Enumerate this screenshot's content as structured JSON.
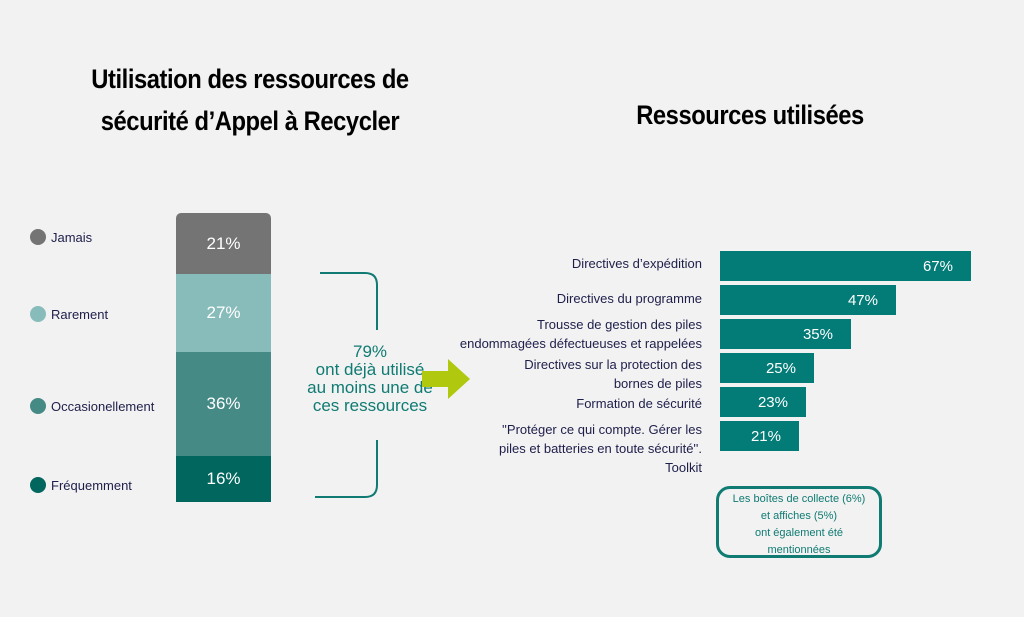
{
  "colors": {
    "jamais": "#747474",
    "rarement": "#88bcbb",
    "occasionnellement": "#468a86",
    "frequemment": "#00665e",
    "bars": "#037b76",
    "arrow": "#b0c80e",
    "accent": "#0f7b72"
  },
  "chart_data": [
    {
      "type": "bar",
      "stacked": true,
      "title": "Utilisation des ressources de sécurité d’Appel à Recycler",
      "series": [
        {
          "name": "Jamais",
          "value": 21,
          "label": "21%"
        },
        {
          "name": "Rarement",
          "value": 27,
          "label": "27%"
        },
        {
          "name": "Occasionellement",
          "value": 36,
          "label": "36%"
        },
        {
          "name": "Fréquemment",
          "value": 16,
          "label": "16%"
        }
      ],
      "legend": "left"
    },
    {
      "type": "bar",
      "orientation": "horizontal",
      "title": "Ressources utilisées",
      "categories": [
        "Directives d’expédition",
        "Directives du programme",
        "Trousse de gestion des piles\nendommagées défectueuses et rappelées",
        "Directives sur la protection des\nbornes de piles",
        "Formation de sécurité",
        "''Protéger ce qui compte. Gérer les\npiles et batteries en toute sécurité''.\nToolkit"
      ],
      "values": [
        67,
        47,
        35,
        25,
        23,
        21
      ],
      "labels": [
        "67%",
        "47%",
        "35%",
        "25%",
        "23%",
        "21%"
      ],
      "xlim": [
        0,
        100
      ]
    }
  ],
  "summary": {
    "percent": "79%",
    "text": "ont déjà utilisé au moins une de ces ressources"
  },
  "note": "Les boîtes de collecte (6%)\net affiches (5%)\nont également été\nmentionnées"
}
